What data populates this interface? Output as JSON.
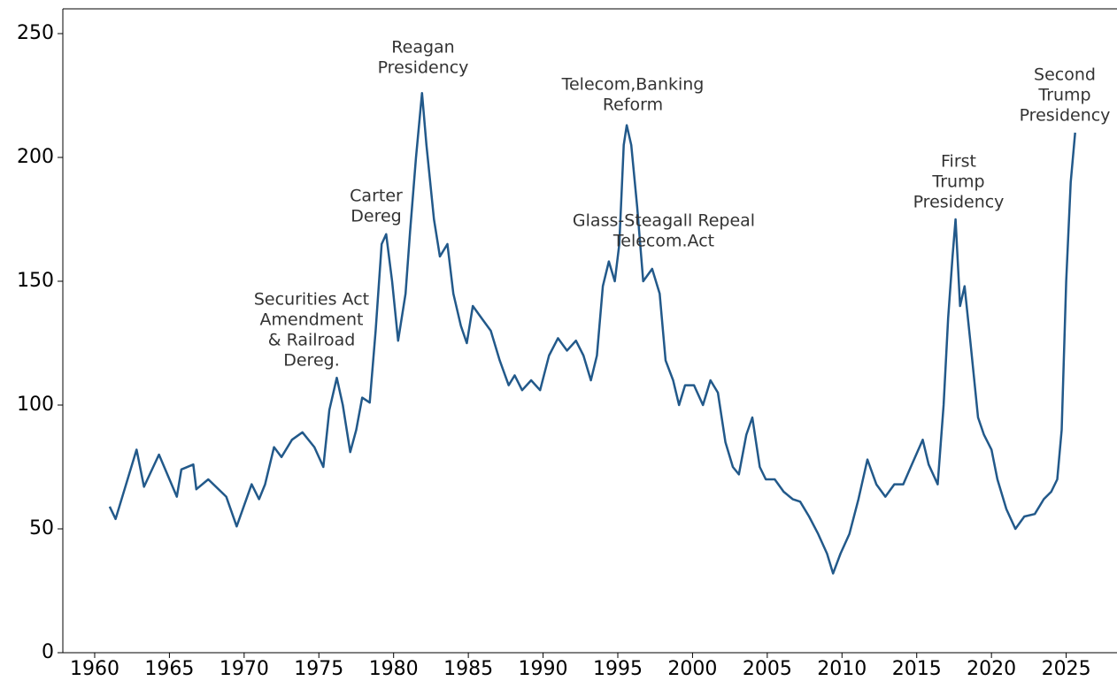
{
  "chart_data": {
    "type": "line",
    "x": [
      1961.0,
      1961.4,
      1962.8,
      1963.3,
      1964.3,
      1965.5,
      1965.8,
      1966.6,
      1966.8,
      1967.6,
      1968.8,
      1969.5,
      1970.5,
      1971.0,
      1971.4,
      1972.0,
      1972.5,
      1973.2,
      1973.9,
      1974.7,
      1975.3,
      1975.7,
      1976.2,
      1976.6,
      1977.1,
      1977.5,
      1977.9,
      1978.4,
      1978.8,
      1979.2,
      1979.5,
      1979.9,
      1980.3,
      1980.8,
      1981.1,
      1981.5,
      1981.9,
      1982.2,
      1982.7,
      1983.1,
      1983.6,
      1984.0,
      1984.5,
      1984.9,
      1985.3,
      1985.9,
      1986.5,
      1987.1,
      1987.7,
      1988.1,
      1988.6,
      1989.2,
      1989.8,
      1990.4,
      1991.0,
      1991.6,
      1992.2,
      1992.7,
      1993.2,
      1993.6,
      1994.0,
      1994.4,
      1994.8,
      1995.1,
      1995.4,
      1995.6,
      1995.9,
      1996.3,
      1996.7,
      1997.3,
      1997.8,
      1998.2,
      1998.7,
      1999.1,
      1999.5,
      2000.1,
      2000.7,
      2001.2,
      2001.7,
      2002.2,
      2002.7,
      2003.1,
      2003.6,
      2004.0,
      2004.5,
      2004.9,
      2005.5,
      2006.1,
      2006.7,
      2007.2,
      2007.8,
      2008.4,
      2009.0,
      2009.4,
      2009.9,
      2010.5,
      2011.1,
      2011.7,
      2012.3,
      2012.9,
      2013.5,
      2014.1,
      2014.6,
      2015.4,
      2015.8,
      2016.4,
      2016.8,
      2017.1,
      2017.4,
      2017.6,
      2017.9,
      2018.2,
      2018.6,
      2019.1,
      2019.5,
      2020.0,
      2020.4,
      2021.0,
      2021.6,
      2022.2,
      2022.9,
      2023.5,
      2024.0,
      2024.4,
      2024.7,
      2025.0,
      2025.3,
      2025.6
    ],
    "values": [
      59,
      54,
      82,
      67,
      80,
      63,
      74,
      76,
      66,
      70,
      63,
      51,
      68,
      62,
      68,
      83,
      79,
      86,
      89,
      83,
      75,
      98,
      111,
      100,
      81,
      90,
      103,
      101,
      130,
      165,
      169,
      150,
      126,
      145,
      170,
      200,
      226,
      205,
      175,
      160,
      165,
      145,
      132,
      125,
      140,
      135,
      130,
      118,
      108,
      112,
      106,
      110,
      106,
      120,
      127,
      122,
      126,
      120,
      110,
      120,
      148,
      158,
      150,
      165,
      205,
      213,
      205,
      180,
      150,
      155,
      145,
      118,
      110,
      100,
      108,
      108,
      100,
      110,
      105,
      85,
      75,
      72,
      88,
      95,
      75,
      70,
      70,
      65,
      62,
      61,
      55,
      48,
      40,
      32,
      40,
      48,
      62,
      78,
      68,
      63,
      68,
      68,
      75,
      86,
      76,
      68,
      100,
      135,
      160,
      175,
      140,
      148,
      125,
      95,
      88,
      82,
      70,
      58,
      50,
      55,
      56,
      62,
      65,
      70,
      90,
      150,
      190,
      210
    ],
    "color": "#22598a",
    "xlim": [
      1957.87,
      2028.4
    ],
    "xticks": [
      1960,
      1965,
      1970,
      1975,
      1980,
      1985,
      1990,
      1995,
      2000,
      2005,
      2010,
      2015,
      2020,
      2025
    ],
    "ylim": [
      0,
      260
    ],
    "yticks": [
      0,
      50,
      100,
      150,
      200,
      250
    ],
    "annotations": [
      [
        "Securities Act",
        "Amendment",
        "& Railroad",
        "Dereg."
      ],
      [
        "Carter",
        "Dereg"
      ],
      [
        "Reagan",
        "Presidency"
      ],
      [
        "Telecom,Banking",
        "Reform"
      ],
      [
        "Glass-Steagall Repeal",
        "Telecom.Act"
      ],
      [
        "First",
        "Trump",
        "Presidency"
      ],
      [
        "Second",
        "Trump",
        "Presidency"
      ]
    ]
  }
}
